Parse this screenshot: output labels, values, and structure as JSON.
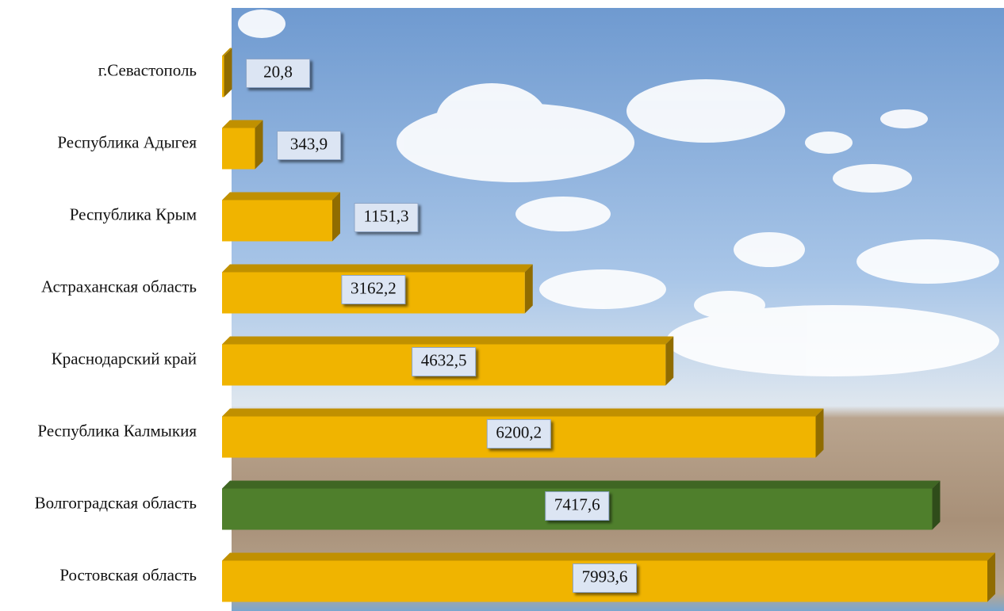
{
  "chart_data": {
    "type": "bar",
    "orientation": "horizontal",
    "categories": [
      "г.Севастополь",
      "Республика Адыгея",
      "Республика Крым",
      "Астраханская область",
      "Краснодарский край",
      "Республика Калмыкия",
      "Волгоградская область",
      "Ростовская область"
    ],
    "values": [
      20.8,
      343.9,
      1151.3,
      3162.2,
      4632.5,
      6200.2,
      7417.6,
      7993.6
    ],
    "value_labels": [
      "20,8",
      "343,9",
      "1151,3",
      "3162,2",
      "4632,5",
      "6200,2",
      "7417,6",
      "7993,6"
    ],
    "colors": [
      "#f0b400",
      "#f0b400",
      "#f0b400",
      "#f0b400",
      "#f0b400",
      "#f0b400",
      "#4f7f2c",
      "#f0b400"
    ]
  }
}
